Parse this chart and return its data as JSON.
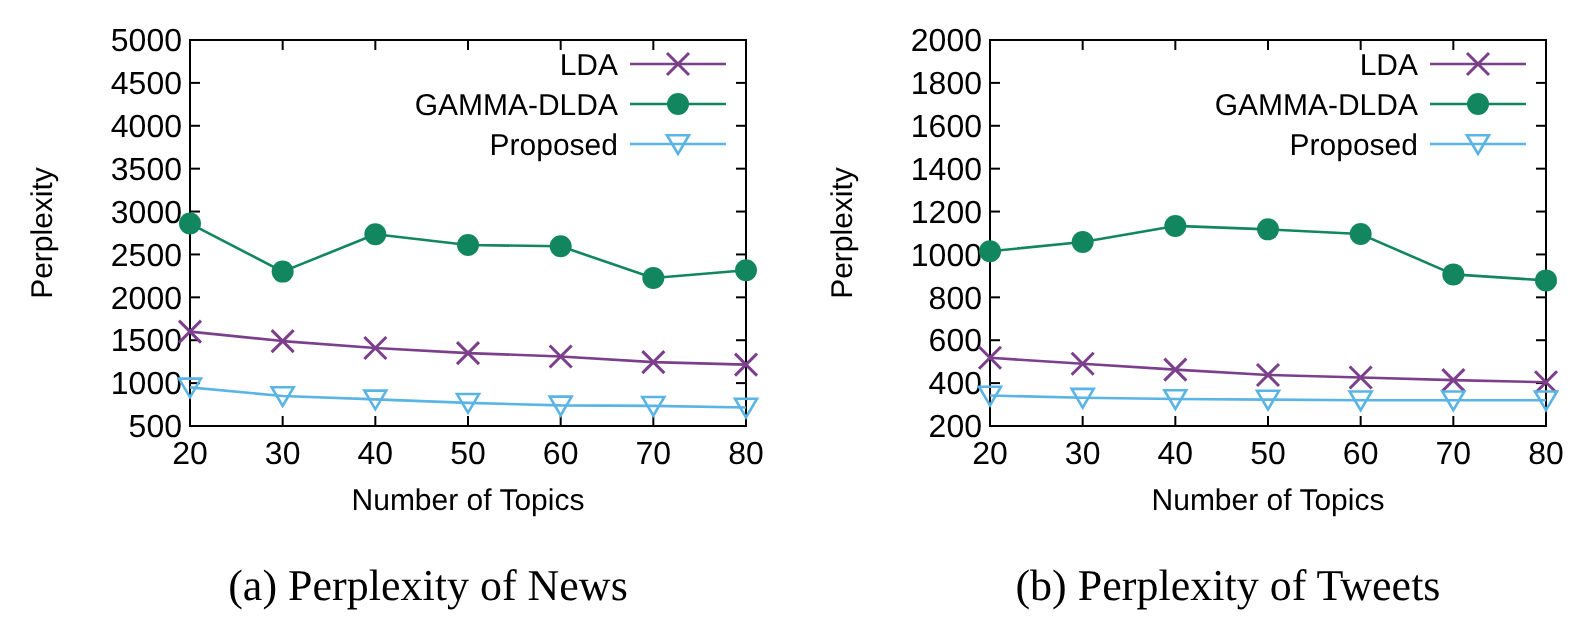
{
  "chart_data": [
    {
      "type": "line",
      "xlabel": "Number of Topics",
      "ylabel": "Perplexity",
      "annotations": [
        "(a) Perplexity of News"
      ],
      "x": [
        20,
        30,
        40,
        50,
        60,
        70,
        80
      ],
      "xlim": [
        20,
        80
      ],
      "xticks": [
        20,
        30,
        40,
        50,
        60,
        70,
        80
      ],
      "ylim": [
        500,
        5000
      ],
      "yticks": [
        500,
        1000,
        1500,
        2000,
        2500,
        3000,
        3500,
        4000,
        4500,
        5000
      ],
      "grid": false,
      "legend": "top right",
      "line_style": "solid",
      "series": [
        {
          "name": "LDA",
          "color": "#7b3f8c",
          "marker": "cross",
          "values": [
            1600,
            1490,
            1410,
            1350,
            1310,
            1245,
            1215
          ]
        },
        {
          "name": "GAMMA-DLDA",
          "color": "#12865f",
          "marker": "circle",
          "values": [
            2860,
            2300,
            2735,
            2610,
            2595,
            2225,
            2315
          ]
        },
        {
          "name": "Proposed",
          "color": "#5ab4e5",
          "marker": "triangle",
          "values": [
            950,
            850,
            810,
            770,
            740,
            735,
            715
          ]
        }
      ]
    },
    {
      "type": "line",
      "xlabel": "Number of Topics",
      "ylabel": "Perplexity",
      "annotations": [
        "(b) Perplexity of Tweets"
      ],
      "x": [
        20,
        30,
        40,
        50,
        60,
        70,
        80
      ],
      "xlim": [
        20,
        80
      ],
      "xticks": [
        20,
        30,
        40,
        50,
        60,
        70,
        80
      ],
      "ylim": [
        200,
        2000
      ],
      "yticks": [
        200,
        400,
        600,
        800,
        1000,
        1200,
        1400,
        1600,
        1800,
        2000
      ],
      "grid": false,
      "legend": "top right",
      "line_style": "solid",
      "series": [
        {
          "name": "LDA",
          "color": "#7b3f8c",
          "marker": "cross",
          "values": [
            518,
            490,
            463,
            438,
            426,
            414,
            404
          ]
        },
        {
          "name": "GAMMA-DLDA",
          "color": "#12865f",
          "marker": "circle",
          "values": [
            1015,
            1058,
            1133,
            1117,
            1095,
            907,
            879
          ]
        },
        {
          "name": "Proposed",
          "color": "#5ab4e5",
          "marker": "triangle",
          "values": [
            342,
            332,
            326,
            323,
            320,
            320,
            320
          ]
        }
      ]
    }
  ]
}
